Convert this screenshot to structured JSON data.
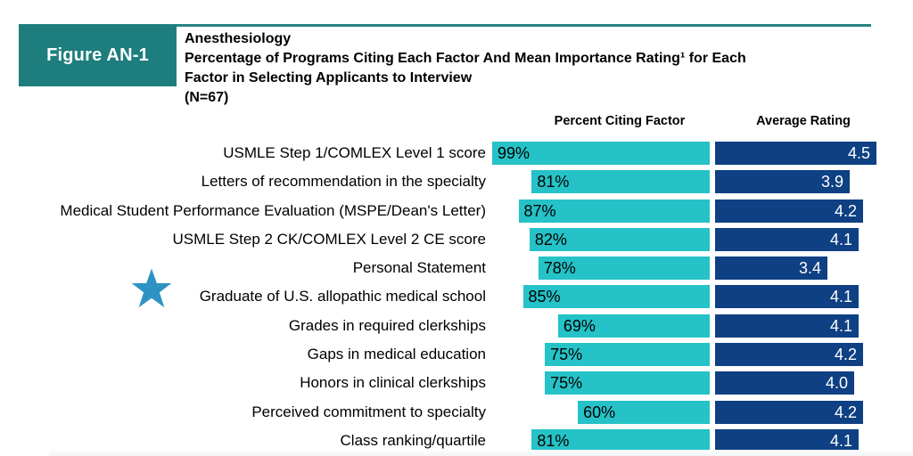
{
  "header": {
    "figure_label": "Figure AN-1",
    "title_lines": [
      "Anesthesiology",
      "Percentage of Programs Citing Each Factor And Mean Importance Rating¹ for Each",
      "Factor in Selecting Applicants to Interview",
      "(N=67)"
    ]
  },
  "columns": {
    "percent_label": "Percent Citing Factor",
    "rating_label": "Average Rating"
  },
  "chart_data": {
    "type": "bar",
    "orientation": "horizontal",
    "specialty": "Anesthesiology",
    "title": "Percentage of Programs Citing Each Factor And Mean Importance Rating for Each Factor in Selecting Applicants to Interview",
    "n": 67,
    "categories": [
      "USMLE Step 1/COMLEX Level 1 score",
      "Letters of recommendation in the specialty",
      "Medical Student Performance Evaluation (MSPE/Dean's Letter)",
      "USMLE Step 2 CK/COMLEX Level 2 CE score",
      "Personal Statement",
      "Graduate of U.S. allopathic medical school",
      "Grades in required clerkships",
      "Gaps in medical education",
      "Honors in clinical clerkships",
      "Perceived commitment to specialty",
      "Class ranking/quartile"
    ],
    "series": [
      {
        "name": "Percent Citing Factor",
        "unit": "%",
        "values": [
          99,
          81,
          87,
          82,
          78,
          85,
          69,
          75,
          75,
          60,
          81
        ]
      },
      {
        "name": "Average Rating",
        "scale_min": 1,
        "scale_max": 5,
        "values": [
          4.5,
          3.9,
          4.2,
          4.1,
          3.4,
          4.1,
          4.1,
          4.2,
          4.0,
          4.2,
          4.1
        ]
      }
    ],
    "starred_category": "Graduate of U.S. allopathic medical school",
    "legend_position": "none",
    "grid": false
  },
  "colors": {
    "percent_bar": "#25c2c7",
    "rating_bar": "#0e4083",
    "figure_box": "#1e7e7e",
    "header_rule": "#278385",
    "star": "#2e93c3",
    "value_text_on_percent": "#000000",
    "value_text_on_rating": "#ffffff"
  }
}
